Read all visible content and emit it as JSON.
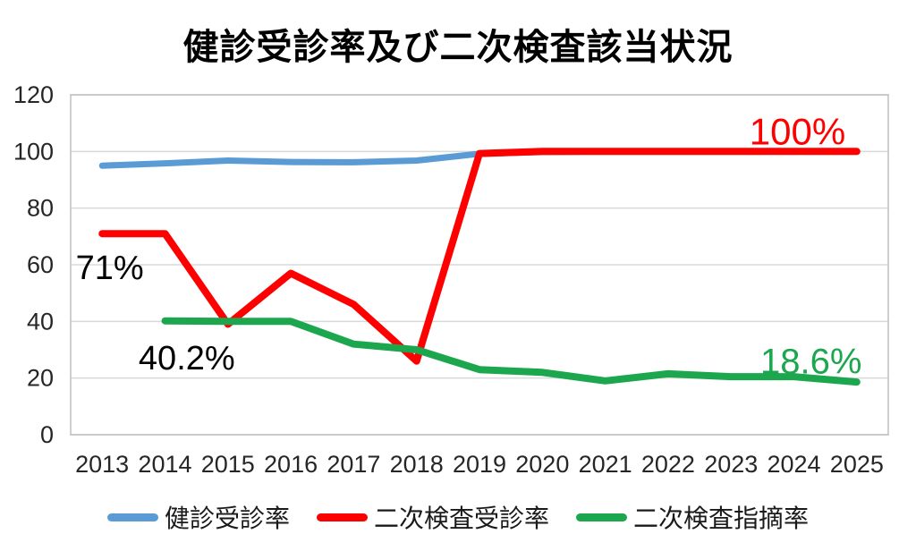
{
  "title": "健診受診率及び二次検査該当状況",
  "colors": {
    "blue": "#5B9BD5",
    "red": "#FF0000",
    "green": "#1CA74E",
    "black": "#000000",
    "gridline": "#D9D9D9",
    "plot_border": "#BFBFBF",
    "tick_text": "#262626"
  },
  "chart_data": {
    "type": "line",
    "title": "健診受診率及び二次検査該当状況",
    "categories": [
      "2013",
      "2014",
      "2015",
      "2016",
      "2017",
      "2018",
      "2019",
      "2020",
      "2021",
      "2022",
      "2023",
      "2024",
      "2025"
    ],
    "series": [
      {
        "key": "checkup-rate",
        "name": "健診受診率",
        "color_key": "blue",
        "values": [
          95,
          95.8,
          96.8,
          96.3,
          96.2,
          96.8,
          99.2,
          99.8,
          100,
          100,
          100,
          100,
          100
        ]
      },
      {
        "key": "secondary-exam-attendance-rate",
        "name": "二次検査受診率",
        "color_key": "red",
        "values": [
          71,
          71,
          39,
          57,
          46,
          26,
          99.3,
          100,
          100,
          100,
          100,
          100,
          100
        ]
      },
      {
        "key": "secondary-exam-flag-rate",
        "name": "二次検査指摘率",
        "color_key": "green",
        "values": [
          null,
          40.2,
          40,
          40,
          32,
          30,
          23,
          22,
          19,
          21.5,
          20.5,
          20.5,
          18.6
        ]
      }
    ],
    "xlabel": "",
    "ylabel": "",
    "ylim": [
      0,
      120
    ],
    "ytick_step": 20,
    "grid": true,
    "legend_position": "bottom",
    "annotations": [
      {
        "text": "71%",
        "color_key": "black",
        "x_index": -0.42,
        "value": 55,
        "align": "start",
        "size": 38
      },
      {
        "text": "40.2%",
        "color_key": "black",
        "x_index": 0.58,
        "value": 23,
        "align": "start",
        "size": 38
      },
      {
        "text": "100%",
        "color_key": "red",
        "x_index": 11.82,
        "value": 102.4,
        "align": "end",
        "size": 42
      },
      {
        "text": "18.6%",
        "color_key": "green",
        "x_index": 12.08,
        "value": 21.6,
        "align": "end",
        "size": 40
      }
    ]
  },
  "legend": {
    "items": [
      {
        "label": "健診受診率",
        "color_key": "blue"
      },
      {
        "label": "二次検査受診率",
        "color_key": "red"
      },
      {
        "label": "二次検査指摘率",
        "color_key": "green"
      }
    ]
  }
}
